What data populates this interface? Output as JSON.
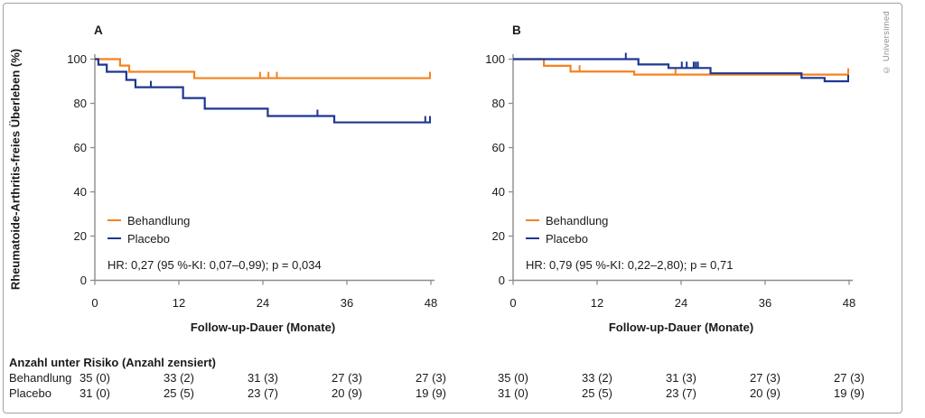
{
  "figure": {
    "copyright": "© Universimed",
    "risk_table": {
      "title": "Anzahl unter Risiko (Anzahl zensiert)",
      "time_points": [
        0,
        12,
        24,
        36,
        48
      ],
      "rows": [
        {
          "label": "Behandlung",
          "values_a": [
            "35 (0)",
            "33 (2)",
            "31 (3)",
            "27 (3)",
            "27 (3)"
          ],
          "values_b": [
            "35 (0)",
            "33 (2)",
            "31 (3)",
            "27 (3)",
            "27 (3)"
          ]
        },
        {
          "label": "Placebo",
          "values_a": [
            "31 (0)",
            "25 (5)",
            "23 (7)",
            "20 (9)",
            "19 (9)"
          ],
          "values_b": [
            "31 (0)",
            "25 (5)",
            "23 (7)",
            "20 (9)",
            "19 (9)"
          ]
        }
      ]
    },
    "colors": {
      "treatment": "#F5821F",
      "placebo": "#1E3791",
      "axis": "#8c8c8c"
    }
  },
  "chart_data": [
    {
      "panel": "A",
      "type": "line",
      "subtype": "kaplan-meier-step",
      "title": "",
      "xlabel": "Follow-up-Dauer (Monate)",
      "ylabel": "Rheumatoide-Arthritis-freies Überleben (%)",
      "xlim": [
        0,
        48
      ],
      "ylim": [
        0,
        100
      ],
      "xticks": [
        0,
        12,
        24,
        36,
        48
      ],
      "yticks": [
        0,
        20,
        40,
        60,
        80,
        100
      ],
      "grid": false,
      "legend_position": "lower-left",
      "annotation": "HR: 0,27 (95 %-KI: 0,07–0,99); p = 0,034",
      "series": [
        {
          "name": "Behandlung",
          "color": "#F5821F",
          "drops": [
            [
              0,
              100
            ],
            [
              3.6,
              97.1
            ],
            [
              4.9,
              94.3
            ],
            [
              14.2,
              91.4
            ],
            [
              48,
              91.4
            ]
          ],
          "censor_marks": [
            [
              23.6,
              91.4
            ],
            [
              24.8,
              91.4
            ],
            [
              26,
              91.4
            ],
            [
              48,
              91.4
            ]
          ]
        },
        {
          "name": "Placebo",
          "color": "#1E3791",
          "drops": [
            [
              0,
              100
            ],
            [
              0.5,
              97.5
            ],
            [
              1.7,
              94.3
            ],
            [
              4.5,
              90.6
            ],
            [
              5.8,
              87.3
            ],
            [
              12.6,
              82.4
            ],
            [
              15.7,
              77.6
            ],
            [
              24.7,
              74.3
            ],
            [
              34.2,
              71.4
            ],
            [
              48,
              71.4
            ]
          ],
          "censor_marks": [
            [
              8,
              87.3
            ],
            [
              31.8,
              74.3
            ],
            [
              47.2,
              71.4
            ],
            [
              48,
              71.4
            ]
          ]
        }
      ]
    },
    {
      "panel": "B",
      "type": "line",
      "subtype": "kaplan-meier-step",
      "title": "",
      "xlabel": "Follow-up-Dauer (Monate)",
      "ylabel": "",
      "xlim": [
        0,
        48
      ],
      "ylim": [
        0,
        100
      ],
      "xticks": [
        0,
        12,
        24,
        36,
        48
      ],
      "yticks": [
        0,
        20,
        40,
        60,
        80,
        100
      ],
      "grid": false,
      "legend_position": "lower-left",
      "annotation": "HR: 0,79 (95 %-KI: 0,22–2,80); p = 0,71",
      "series": [
        {
          "name": "Behandlung",
          "color": "#F5821F",
          "drops": [
            [
              0,
              100
            ],
            [
              4.4,
              97
            ],
            [
              8.2,
              94.4
            ],
            [
              17.3,
              93
            ],
            [
              48,
              93
            ]
          ],
          "censor_marks": [
            [
              9.5,
              94.4
            ],
            [
              23.2,
              93
            ],
            [
              48,
              93
            ]
          ]
        },
        {
          "name": "Placebo",
          "color": "#1E3791",
          "drops": [
            [
              0,
              100
            ],
            [
              17.9,
              97.6
            ],
            [
              22.2,
              96
            ],
            [
              28.2,
              93.6
            ],
            [
              41.2,
              91.5
            ],
            [
              44.5,
              90
            ],
            [
              48,
              90
            ]
          ],
          "censor_marks": [
            [
              16.1,
              100
            ],
            [
              24.1,
              96
            ],
            [
              24.8,
              96
            ],
            [
              25.8,
              96
            ],
            [
              26.1,
              96
            ],
            [
              26.4,
              96
            ],
            [
              48,
              90
            ]
          ]
        }
      ]
    }
  ]
}
